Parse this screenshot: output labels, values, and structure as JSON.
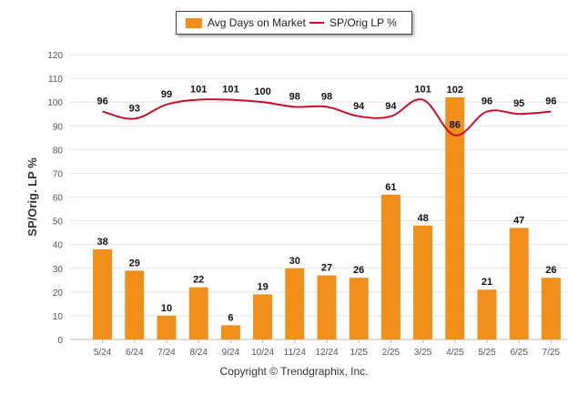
{
  "legend": {
    "bar_label": "Avg Days on Market",
    "line_label": "SP/Orig LP %"
  },
  "copyright": "Copyright © Trendgraphix, Inc.",
  "colors": {
    "bar": "#f0901a",
    "line": "#c8102e",
    "grid": "#e4e4e4",
    "axis_text": "#555555",
    "label_text": "#111111"
  },
  "chart_data": {
    "type": "bar",
    "ylabel": "SP/Orig. LP %",
    "ylim": [
      0,
      120
    ],
    "yticks": [
      0,
      10,
      20,
      30,
      40,
      50,
      60,
      70,
      80,
      90,
      100,
      110,
      120
    ],
    "grid": true,
    "legend_position": "top-center",
    "categories": [
      "5/24",
      "6/24",
      "7/24",
      "8/24",
      "9/24",
      "10/24",
      "11/24",
      "12/24",
      "1/25",
      "2/25",
      "3/25",
      "4/25",
      "5/25",
      "6/25",
      "7/25"
    ],
    "series": [
      {
        "name": "Avg Days on Market",
        "type": "bar",
        "values": [
          38,
          29,
          10,
          22,
          6,
          19,
          30,
          27,
          26,
          61,
          48,
          102,
          21,
          47,
          26
        ]
      },
      {
        "name": "SP/Orig LP %",
        "type": "line",
        "values": [
          96,
          93,
          99,
          101,
          101,
          100,
          98,
          98,
          94,
          94,
          101,
          86,
          96,
          95,
          96
        ]
      }
    ]
  }
}
